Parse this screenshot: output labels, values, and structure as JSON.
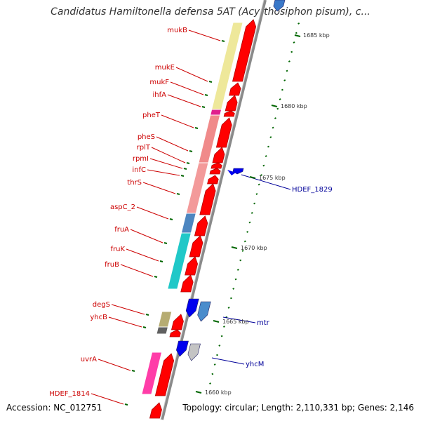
{
  "title": "Candidatus Hamiltonella defensa 5AT (Acyrthosiphon pisum), c...",
  "footer": {
    "accession": "Accession: NC_012751",
    "topology": "Topology: circular; Length: 2,110,331 bp; Genes: 2,146"
  },
  "colors": {
    "forward_gene": "#ff0000",
    "reverse_gene": "#0000ee",
    "left_label": "#cc0000",
    "right_label": "#000099",
    "tick": "#006600",
    "backbone": "#888888"
  },
  "ticks": [
    "1685 kbp",
    "1680 kbp",
    "1675 kbp",
    "1670 kbp",
    "1665 kbp",
    "1660 kbp"
  ],
  "left_labels": [
    "mukB",
    "mukE",
    "mukF",
    "ihfA",
    "pheT",
    "pheS",
    "rplT",
    "rpmI",
    "infC",
    "thrS",
    "aspC_2",
    "fruA",
    "fruK",
    "fruB",
    "degS",
    "yhcB",
    "uvrA",
    "HDEF_1814"
  ],
  "right_labels": [
    "HDEF_1829",
    "mtr",
    "yhcM"
  ]
}
